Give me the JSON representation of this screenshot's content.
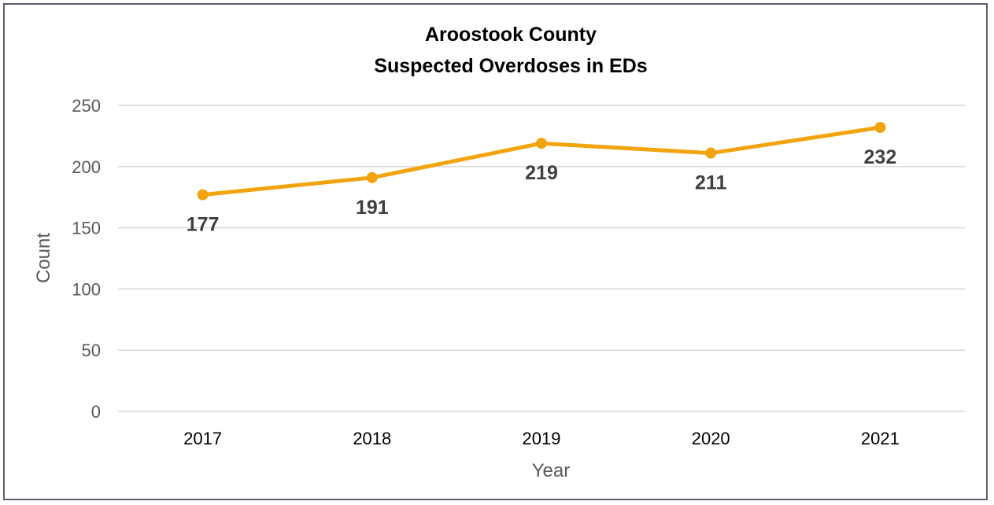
{
  "chart_data": {
    "type": "line",
    "title_line1": "Aroostook County",
    "title_line2": "Suspected Overdoses in EDs",
    "xlabel": "Year",
    "ylabel": "Count",
    "categories": [
      "2017",
      "2018",
      "2019",
      "2020",
      "2021"
    ],
    "series": [
      {
        "values": [
          177,
          191,
          219,
          211,
          232
        ],
        "color": "#f2a40f"
      }
    ],
    "data_labels": [
      "177",
      "191",
      "219",
      "211",
      "232"
    ],
    "ylim": [
      0,
      250
    ],
    "yticks": [
      0,
      50,
      100,
      150,
      200,
      250
    ],
    "ytick_labels": [
      "0",
      "50",
      "100",
      "150",
      "200",
      "250"
    ],
    "grid": true,
    "legend": "none",
    "colors": {
      "gridline": "#d9d9d9",
      "frame": "#59606b"
    }
  }
}
